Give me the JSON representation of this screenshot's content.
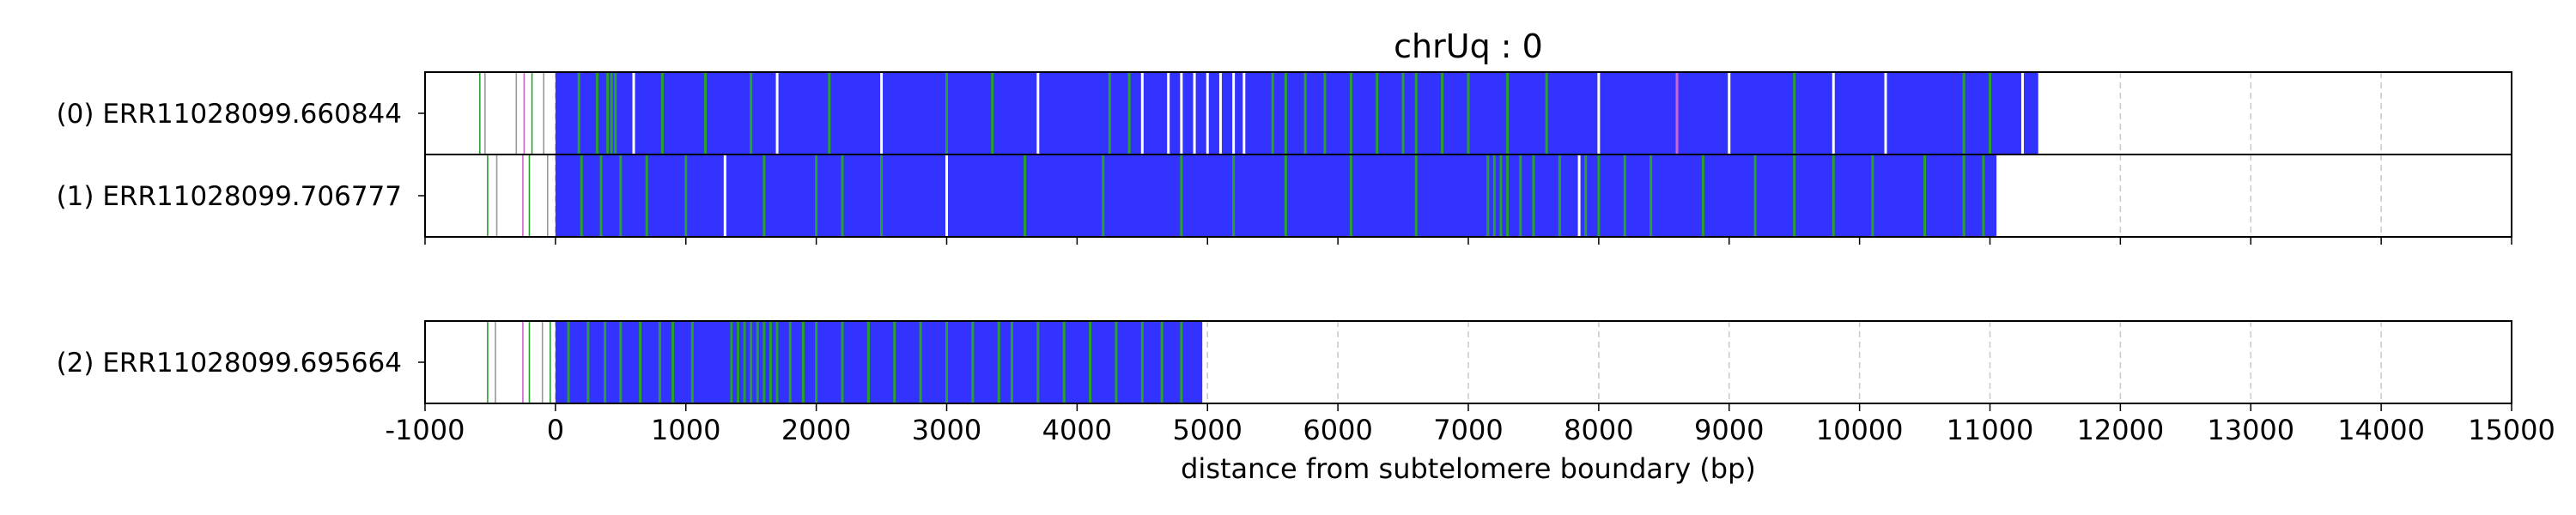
{
  "chart_data": {
    "type": "bar",
    "title": "chrUq : 0",
    "xlabel": "distance from subtelomere boundary (bp)",
    "ylabel": "",
    "xlim": [
      -1000,
      15000
    ],
    "x_ticks": [
      "-1000",
      "0",
      "1000",
      "2000",
      "3000",
      "4000",
      "5000",
      "6000",
      "7000",
      "8000",
      "9000",
      "10000",
      "11000",
      "12000",
      "13000",
      "14000",
      "15000"
    ],
    "grid": "vertical dashed at x ticks",
    "colors": {
      "main": "#3333ff",
      "green": "#2ca02c",
      "white": "#ffffff",
      "pink": "#cc66cc",
      "gray": "#999999",
      "grid": "#c8c8c8"
    },
    "panels": [
      {
        "reads": [
          {
            "label": "(0) ERR11028099.660844",
            "start": 0,
            "end": 11370,
            "marks": [
              {
                "x": -580,
                "color": "green"
              },
              {
                "x": -540,
                "color": "gray"
              },
              {
                "x": -300,
                "color": "gray"
              },
              {
                "x": -240,
                "color": "pink"
              },
              {
                "x": -180,
                "color": "green"
              },
              {
                "x": -90,
                "color": "gray"
              },
              {
                "x": 180,
                "color": "green"
              },
              {
                "x": 320,
                "color": "green"
              },
              {
                "x": 400,
                "color": "green"
              },
              {
                "x": 430,
                "color": "green"
              },
              {
                "x": 460,
                "color": "green"
              },
              {
                "x": 600,
                "color": "white"
              },
              {
                "x": 820,
                "color": "green"
              },
              {
                "x": 1150,
                "color": "green"
              },
              {
                "x": 1500,
                "color": "green"
              },
              {
                "x": 1700,
                "color": "white"
              },
              {
                "x": 2100,
                "color": "green"
              },
              {
                "x": 2500,
                "color": "white"
              },
              {
                "x": 3000,
                "color": "green"
              },
              {
                "x": 3350,
                "color": "green"
              },
              {
                "x": 3700,
                "color": "white"
              },
              {
                "x": 4250,
                "color": "green"
              },
              {
                "x": 4400,
                "color": "green"
              },
              {
                "x": 4500,
                "color": "white"
              },
              {
                "x": 4700,
                "color": "white"
              },
              {
                "x": 4800,
                "color": "white"
              },
              {
                "x": 4900,
                "color": "white"
              },
              {
                "x": 5000,
                "color": "white"
              },
              {
                "x": 5100,
                "color": "white"
              },
              {
                "x": 5200,
                "color": "white"
              },
              {
                "x": 5280,
                "color": "white"
              },
              {
                "x": 5500,
                "color": "green"
              },
              {
                "x": 5600,
                "color": "green"
              },
              {
                "x": 5750,
                "color": "green"
              },
              {
                "x": 5900,
                "color": "green"
              },
              {
                "x": 6100,
                "color": "green"
              },
              {
                "x": 6300,
                "color": "green"
              },
              {
                "x": 6500,
                "color": "green"
              },
              {
                "x": 6600,
                "color": "green"
              },
              {
                "x": 6800,
                "color": "green"
              },
              {
                "x": 7000,
                "color": "green"
              },
              {
                "x": 7300,
                "color": "green"
              },
              {
                "x": 7600,
                "color": "green"
              },
              {
                "x": 8000,
                "color": "white"
              },
              {
                "x": 8600,
                "color": "pink"
              },
              {
                "x": 9000,
                "color": "white"
              },
              {
                "x": 9500,
                "color": "green"
              },
              {
                "x": 9800,
                "color": "white"
              },
              {
                "x": 10200,
                "color": "white"
              },
              {
                "x": 10800,
                "color": "green"
              },
              {
                "x": 11000,
                "color": "green"
              },
              {
                "x": 11250,
                "color": "white"
              }
            ]
          },
          {
            "label": "(1) ERR11028099.706777",
            "start": 0,
            "end": 11050,
            "marks": [
              {
                "x": -520,
                "color": "green"
              },
              {
                "x": -450,
                "color": "gray"
              },
              {
                "x": -250,
                "color": "pink"
              },
              {
                "x": -200,
                "color": "green"
              },
              {
                "x": -60,
                "color": "gray"
              },
              {
                "x": 200,
                "color": "green"
              },
              {
                "x": 350,
                "color": "green"
              },
              {
                "x": 500,
                "color": "green"
              },
              {
                "x": 700,
                "color": "green"
              },
              {
                "x": 1000,
                "color": "green"
              },
              {
                "x": 1300,
                "color": "white"
              },
              {
                "x": 1600,
                "color": "green"
              },
              {
                "x": 2000,
                "color": "green"
              },
              {
                "x": 2200,
                "color": "green"
              },
              {
                "x": 2500,
                "color": "green"
              },
              {
                "x": 3000,
                "color": "white"
              },
              {
                "x": 3600,
                "color": "green"
              },
              {
                "x": 4200,
                "color": "green"
              },
              {
                "x": 4800,
                "color": "green"
              },
              {
                "x": 5200,
                "color": "green"
              },
              {
                "x": 5600,
                "color": "green"
              },
              {
                "x": 6100,
                "color": "green"
              },
              {
                "x": 6600,
                "color": "green"
              },
              {
                "x": 7150,
                "color": "green"
              },
              {
                "x": 7200,
                "color": "green"
              },
              {
                "x": 7250,
                "color": "green"
              },
              {
                "x": 7300,
                "color": "green"
              },
              {
                "x": 7400,
                "color": "green"
              },
              {
                "x": 7500,
                "color": "green"
              },
              {
                "x": 7700,
                "color": "green"
              },
              {
                "x": 7850,
                "color": "white"
              },
              {
                "x": 7900,
                "color": "green"
              },
              {
                "x": 8000,
                "color": "green"
              },
              {
                "x": 8200,
                "color": "green"
              },
              {
                "x": 8400,
                "color": "green"
              },
              {
                "x": 8800,
                "color": "green"
              },
              {
                "x": 9200,
                "color": "green"
              },
              {
                "x": 9500,
                "color": "green"
              },
              {
                "x": 9800,
                "color": "green"
              },
              {
                "x": 10100,
                "color": "green"
              },
              {
                "x": 10500,
                "color": "green"
              },
              {
                "x": 10800,
                "color": "green"
              },
              {
                "x": 10950,
                "color": "green"
              }
            ]
          }
        ]
      },
      {
        "reads": [
          {
            "label": "(2) ERR11028099.695664",
            "start": 0,
            "end": 4960,
            "marks": [
              {
                "x": -520,
                "color": "green"
              },
              {
                "x": -460,
                "color": "gray"
              },
              {
                "x": -250,
                "color": "pink"
              },
              {
                "x": -200,
                "color": "green"
              },
              {
                "x": -100,
                "color": "gray"
              },
              {
                "x": -40,
                "color": "green"
              },
              {
                "x": 100,
                "color": "green"
              },
              {
                "x": 250,
                "color": "green"
              },
              {
                "x": 380,
                "color": "green"
              },
              {
                "x": 500,
                "color": "green"
              },
              {
                "x": 650,
                "color": "green"
              },
              {
                "x": 800,
                "color": "green"
              },
              {
                "x": 900,
                "color": "green"
              },
              {
                "x": 1050,
                "color": "green"
              },
              {
                "x": 1350,
                "color": "green"
              },
              {
                "x": 1400,
                "color": "green"
              },
              {
                "x": 1450,
                "color": "green"
              },
              {
                "x": 1500,
                "color": "green"
              },
              {
                "x": 1550,
                "color": "green"
              },
              {
                "x": 1600,
                "color": "green"
              },
              {
                "x": 1650,
                "color": "green"
              },
              {
                "x": 1700,
                "color": "green"
              },
              {
                "x": 1800,
                "color": "green"
              },
              {
                "x": 1900,
                "color": "green"
              },
              {
                "x": 2000,
                "color": "green"
              },
              {
                "x": 2200,
                "color": "green"
              },
              {
                "x": 2400,
                "color": "green"
              },
              {
                "x": 2600,
                "color": "green"
              },
              {
                "x": 2800,
                "color": "green"
              },
              {
                "x": 3000,
                "color": "green"
              },
              {
                "x": 3200,
                "color": "green"
              },
              {
                "x": 3400,
                "color": "green"
              },
              {
                "x": 3500,
                "color": "green"
              },
              {
                "x": 3700,
                "color": "green"
              },
              {
                "x": 3900,
                "color": "green"
              },
              {
                "x": 4100,
                "color": "green"
              },
              {
                "x": 4300,
                "color": "green"
              },
              {
                "x": 4500,
                "color": "green"
              },
              {
                "x": 4650,
                "color": "green"
              },
              {
                "x": 4800,
                "color": "green"
              }
            ]
          }
        ]
      }
    ]
  }
}
